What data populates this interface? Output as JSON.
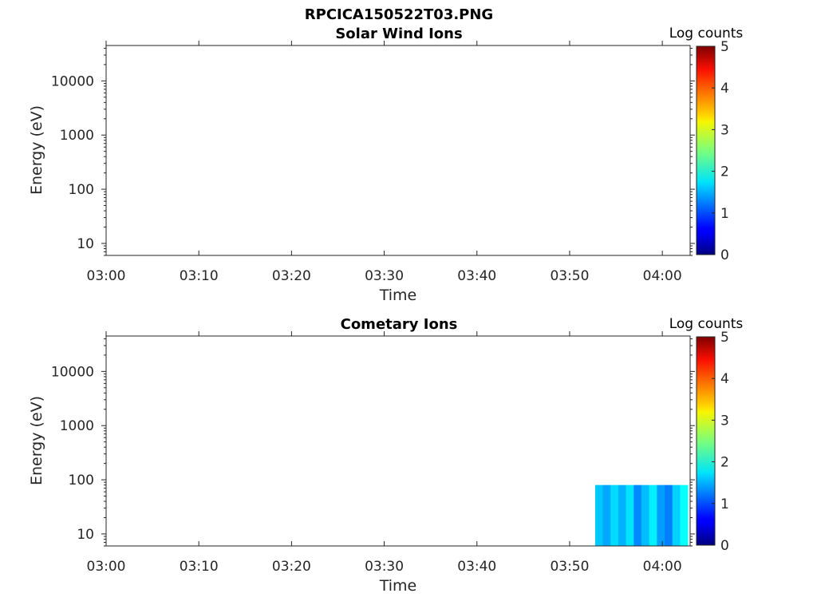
{
  "figure": {
    "title": "RPCICA150522T03.PNG"
  },
  "chart_data": [
    {
      "type": "heatmap",
      "title": "Solar Wind Ions",
      "xlabel": "Time",
      "ylabel": "Energy (eV)",
      "x_tick_labels": [
        "03:00",
        "03:10",
        "03:20",
        "03:30",
        "03:40",
        "03:50",
        "04:00"
      ],
      "x_range": [
        "03:00",
        "04:03"
      ],
      "y_scale": "log",
      "y_range": [
        6,
        45000
      ],
      "y_tick_values": [
        10,
        100,
        1000,
        10000
      ],
      "y_tick_labels": [
        "10",
        "100",
        "1000",
        "10000"
      ],
      "colorbar": {
        "label": "Log counts",
        "range": [
          0,
          5
        ],
        "tick_labels": [
          "0",
          "1",
          "2",
          "3",
          "4",
          "5"
        ],
        "colormap": "jet"
      },
      "blocks": []
    },
    {
      "type": "heatmap",
      "title": "Cometary Ions",
      "xlabel": "Time",
      "ylabel": "Energy (eV)",
      "x_tick_labels": [
        "03:00",
        "03:10",
        "03:20",
        "03:30",
        "03:40",
        "03:50",
        "04:00"
      ],
      "x_range": [
        "03:00",
        "04:03"
      ],
      "y_scale": "log",
      "y_range": [
        6,
        45000
      ],
      "y_tick_values": [
        10,
        100,
        1000,
        10000
      ],
      "y_tick_labels": [
        "10",
        "100",
        "1000",
        "10000"
      ],
      "colorbar": {
        "label": "Log counts",
        "range": [
          0,
          5
        ],
        "tick_labels": [
          "0",
          "1",
          "2",
          "3",
          "4",
          "5"
        ],
        "colormap": "jet"
      },
      "blocks": [
        {
          "t_start": "03:52:45",
          "t_end": "03:53:35",
          "value": 1.6
        },
        {
          "t_start": "03:53:35",
          "t_end": "03:54:25",
          "value": 1.45
        },
        {
          "t_start": "03:54:25",
          "t_end": "03:55:15",
          "value": 1.7
        },
        {
          "t_start": "03:55:15",
          "t_end": "03:56:05",
          "value": 1.5
        },
        {
          "t_start": "03:56:05",
          "t_end": "03:56:55",
          "value": 1.75
        },
        {
          "t_start": "03:56:55",
          "t_end": "03:57:45",
          "value": 1.3
        },
        {
          "t_start": "03:57:45",
          "t_end": "03:58:35",
          "value": 1.55
        },
        {
          "t_start": "03:58:35",
          "t_end": "03:59:25",
          "value": 1.8
        },
        {
          "t_start": "03:59:25",
          "t_end": "04:00:15",
          "value": 1.4
        },
        {
          "t_start": "04:00:15",
          "t_end": "04:01:05",
          "value": 1.25
        },
        {
          "t_start": "04:01:05",
          "t_end": "04:01:55",
          "value": 1.65
        },
        {
          "t_start": "04:01:55",
          "t_end": "04:02:45",
          "value": 1.9
        }
      ],
      "block_energy_range": [
        6,
        80
      ]
    }
  ]
}
